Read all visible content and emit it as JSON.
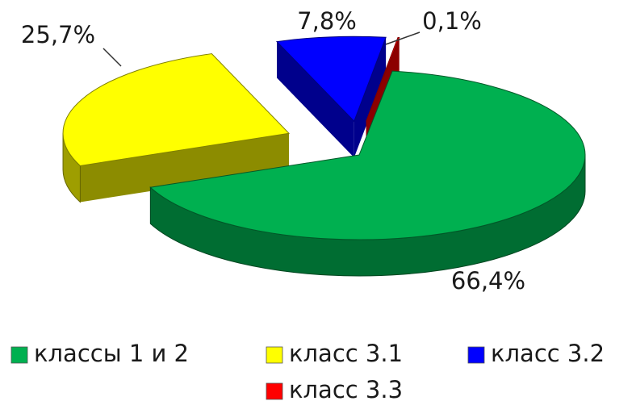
{
  "chart_data": {
    "type": "pie",
    "categories": [
      "классы 1 и 2",
      "класс 3.1",
      "класс 3.2",
      "класс 3.3"
    ],
    "values": [
      66.4,
      25.7,
      7.8,
      0.1
    ],
    "value_labels": [
      "66,4%",
      "25,7%",
      "7,8%",
      "0,1%"
    ],
    "colors": [
      "#00b050",
      "#ffff00",
      "#0000ff",
      "#ff0000"
    ],
    "legend": "bottom"
  }
}
